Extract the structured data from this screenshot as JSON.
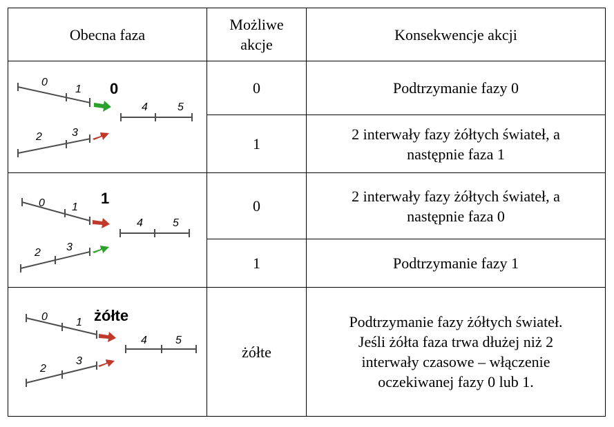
{
  "header": {
    "col1": "Obecna faza",
    "col2": "Możliwe akcje",
    "col3": "Konsekwencje akcji"
  },
  "rows": [
    {
      "phase_label": "0",
      "numbers": [
        "0",
        "1",
        "2",
        "3",
        "4",
        "5"
      ],
      "arrow_top_color": "#2ca02c",
      "arrow_bottom_color": "#c0392b",
      "actions": [
        {
          "action": "0",
          "consequence": "Podtrzymanie fazy 0"
        },
        {
          "action": "1",
          "consequence": "2 interwały fazy żółtych świateł, a następnie faza 1"
        }
      ]
    },
    {
      "phase_label": "1",
      "numbers": [
        "0",
        "1",
        "2",
        "3",
        "4",
        "5"
      ],
      "arrow_top_color": "#c0392b",
      "arrow_bottom_color": "#2ca02c",
      "actions": [
        {
          "action": "0",
          "consequence": "2 interwały fazy żółtych świateł, a następnie faza 0"
        },
        {
          "action": "1",
          "consequence": "Podtrzymanie fazy 1"
        }
      ]
    },
    {
      "phase_label": "żółte",
      "numbers": [
        "0",
        "1",
        "2",
        "3",
        "4",
        "5"
      ],
      "arrow_top_color": "#c0392b",
      "arrow_bottom_color": "#c0392b",
      "actions": [
        {
          "action": "żółte",
          "consequence": "Podtrzymanie fazy żółtych świateł. Jeśli żółta faza trwa dłużej niż 2 interwały czasowe – włączenie oczekiwanej fazy 0 lub 1."
        }
      ]
    }
  ]
}
